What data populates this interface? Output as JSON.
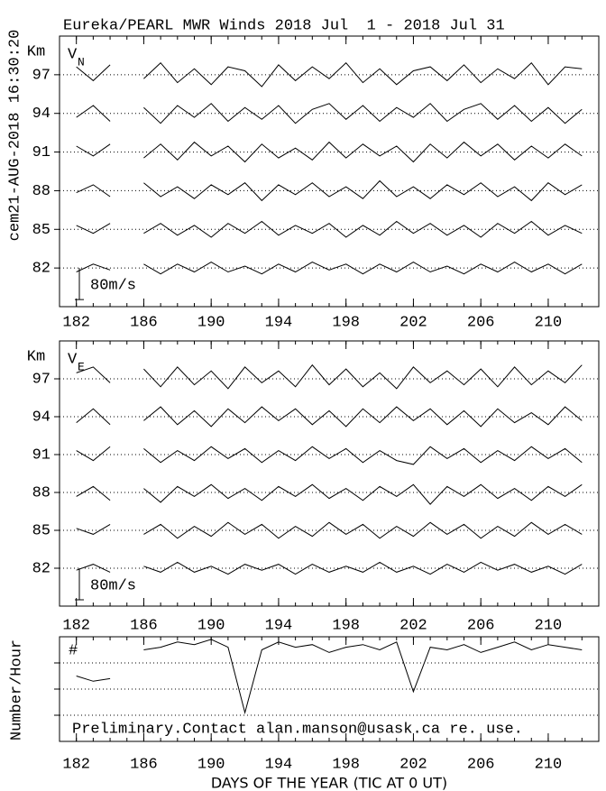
{
  "stamp": "cem21-AUG-2018 16:30:20",
  "chart_data": [
    {
      "type": "line",
      "title": "Eureka/PEARL MWR Winds 2018 Jul  1 - 2018 Jul 31",
      "y_unit": "Km",
      "component": "V",
      "component_sub": "N",
      "x": [
        182,
        183,
        184,
        185,
        186,
        187,
        188,
        189,
        190,
        191,
        192,
        193,
        194,
        195,
        196,
        197,
        198,
        199,
        200,
        201,
        202,
        203,
        204,
        205,
        206,
        207,
        208,
        209,
        210,
        211,
        212
      ],
      "xlim": [
        181,
        213
      ],
      "xticks": [
        182,
        186,
        190,
        194,
        198,
        202,
        206,
        210
      ],
      "ylim": [
        79,
        100
      ],
      "yticks": [
        82,
        85,
        88,
        91,
        94,
        97
      ],
      "grid": true,
      "scale": {
        "value": 80,
        "label": "80m/s"
      },
      "series": [
        {
          "altitude": 97,
          "color": "#000000",
          "values": [
            20,
            -15,
            25,
            null,
            -10,
            30,
            -20,
            15,
            -25,
            20,
            10,
            -30,
            25,
            -15,
            20,
            -10,
            30,
            -20,
            15,
            -25,
            10,
            20,
            -15,
            25,
            -20,
            15,
            -10,
            30,
            -25,
            20,
            15
          ]
        },
        {
          "altitude": 94,
          "color": "#000000",
          "values": [
            -10,
            20,
            -20,
            null,
            15,
            -25,
            20,
            -10,
            25,
            -20,
            15,
            -15,
            20,
            -25,
            10,
            25,
            -15,
            20,
            -20,
            15,
            -10,
            25,
            -20,
            10,
            25,
            -15,
            20,
            -20,
            15,
            -25,
            10
          ]
        },
        {
          "altitude": 91,
          "color": "#000000",
          "values": [
            15,
            -10,
            20,
            null,
            -15,
            20,
            -20,
            25,
            -10,
            15,
            -25,
            20,
            -15,
            10,
            -20,
            25,
            -15,
            20,
            -10,
            15,
            -25,
            20,
            -15,
            25,
            -10,
            20,
            -20,
            15,
            -15,
            20,
            -10
          ]
        },
        {
          "altitude": 88,
          "color": "#000000",
          "values": [
            -5,
            15,
            -15,
            null,
            20,
            -15,
            10,
            -20,
            15,
            -10,
            20,
            -25,
            15,
            -10,
            20,
            -15,
            10,
            -20,
            25,
            -15,
            10,
            -20,
            15,
            -10,
            20,
            -15,
            10,
            -25,
            20,
            -10,
            15
          ]
        },
        {
          "altitude": 85,
          "color": "#000000",
          "values": [
            10,
            -10,
            15,
            null,
            -10,
            15,
            -15,
            10,
            -20,
            15,
            -10,
            20,
            -15,
            10,
            -10,
            15,
            -20,
            10,
            -15,
            20,
            -10,
            15,
            -15,
            10,
            -20,
            15,
            -10,
            20,
            -15,
            10,
            -10
          ]
        },
        {
          "altitude": 82,
          "color": "#000000",
          "values": [
            -10,
            10,
            -5,
            null,
            10,
            -15,
            10,
            -10,
            15,
            -10,
            5,
            -15,
            10,
            -10,
            15,
            -5,
            10,
            -15,
            10,
            -10,
            15,
            -10,
            5,
            -15,
            10,
            -10,
            15,
            -10,
            10,
            -15,
            10
          ]
        }
      ]
    },
    {
      "type": "line",
      "y_unit": "Km",
      "component": "V",
      "component_sub": "E",
      "x": [
        182,
        183,
        184,
        185,
        186,
        187,
        188,
        189,
        190,
        191,
        192,
        193,
        194,
        195,
        196,
        197,
        198,
        199,
        200,
        201,
        202,
        203,
        204,
        205,
        206,
        207,
        208,
        209,
        210,
        211,
        212
      ],
      "xlim": [
        181,
        213
      ],
      "xticks": [
        182,
        186,
        190,
        194,
        198,
        202,
        206,
        210
      ],
      "ylim": [
        79,
        100
      ],
      "yticks": [
        82,
        85,
        88,
        91,
        94,
        97
      ],
      "grid": true,
      "scale": {
        "value": 80,
        "label": "80m/s"
      },
      "series": [
        {
          "altitude": 97,
          "color": "#000000",
          "values": [
            15,
            30,
            -10,
            null,
            25,
            -20,
            30,
            -15,
            20,
            -25,
            30,
            -10,
            20,
            -20,
            35,
            -15,
            25,
            -20,
            15,
            -25,
            30,
            -10,
            20,
            -15,
            25,
            -20,
            30,
            -15,
            20,
            -10,
            35
          ]
        },
        {
          "altitude": 94,
          "color": "#000000",
          "values": [
            -15,
            20,
            -20,
            null,
            -10,
            25,
            -20,
            15,
            -25,
            20,
            -15,
            25,
            -10,
            20,
            -20,
            15,
            -25,
            20,
            -15,
            25,
            -10,
            20,
            -20,
            15,
            -25,
            20,
            -15,
            10,
            -20,
            25,
            -10
          ]
        },
        {
          "altitude": 91,
          "color": "#000000",
          "values": [
            10,
            -15,
            20,
            null,
            15,
            -20,
            10,
            -15,
            20,
            -10,
            15,
            -20,
            10,
            -15,
            20,
            -10,
            15,
            -20,
            10,
            -15,
            -25,
            20,
            -10,
            15,
            -20,
            10,
            -15,
            20,
            -10,
            15,
            -20
          ]
        },
        {
          "altitude": 88,
          "color": "#000000",
          "values": [
            -10,
            15,
            -20,
            null,
            10,
            -25,
            15,
            -10,
            20,
            -15,
            10,
            -20,
            15,
            -10,
            20,
            -15,
            10,
            -20,
            15,
            -10,
            20,
            -30,
            15,
            -10,
            20,
            -15,
            10,
            -20,
            15,
            -10,
            20
          ]
        },
        {
          "altitude": 85,
          "color": "#000000",
          "values": [
            5,
            -10,
            15,
            null,
            -10,
            15,
            -20,
            10,
            -15,
            20,
            -10,
            15,
            -20,
            10,
            -15,
            20,
            -10,
            15,
            -20,
            10,
            -15,
            20,
            -10,
            15,
            -20,
            10,
            -15,
            20,
            -10,
            15,
            -10
          ]
        },
        {
          "altitude": 82,
          "color": "#000000",
          "values": [
            -5,
            10,
            -10,
            null,
            5,
            -10,
            15,
            -10,
            5,
            -15,
            10,
            -5,
            10,
            -15,
            10,
            -10,
            5,
            -10,
            15,
            -10,
            5,
            -15,
            10,
            -10,
            15,
            -5,
            10,
            -10,
            5,
            -15,
            10
          ]
        }
      ]
    },
    {
      "type": "line",
      "ylabel": "Number/Hour",
      "marker": "#",
      "note": "Preliminary.Contact alan.manson@usask.ca re. use.",
      "xlabel": "DAYS OF THE YEAR (TIC AT 0 UT)",
      "x": [
        182,
        183,
        184,
        185,
        186,
        187,
        188,
        189,
        190,
        191,
        192,
        193,
        194,
        195,
        196,
        197,
        198,
        199,
        200,
        201,
        202,
        203,
        204,
        205,
        206,
        207,
        208,
        209,
        210,
        211,
        212
      ],
      "xlim": [
        181,
        213
      ],
      "xticks": [
        182,
        186,
        190,
        194,
        198,
        202,
        206,
        210
      ],
      "ylim": [
        0,
        4
      ],
      "yticks": [
        1,
        2,
        3
      ],
      "grid": true,
      "series": [
        {
          "color": "#000000",
          "values": [
            2.5,
            2.3,
            2.4,
            null,
            3.5,
            3.6,
            3.8,
            3.7,
            3.9,
            3.6,
            1.1,
            3.5,
            3.8,
            3.6,
            3.7,
            3.4,
            3.6,
            3.7,
            3.5,
            3.8,
            1.9,
            3.6,
            3.5,
            3.7,
            3.4,
            3.6,
            3.8,
            3.5,
            3.7,
            3.6,
            3.5
          ]
        }
      ]
    }
  ]
}
